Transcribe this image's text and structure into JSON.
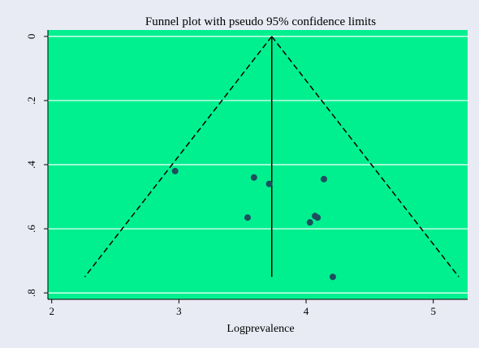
{
  "colors": {
    "outer_background": "#e8eaf4",
    "plot_background": "#00f08f",
    "gridline": "#ffffff",
    "marker": "#1e4f5f",
    "line": "#000000"
  },
  "chart_data": {
    "type": "scatter",
    "title": "Funnel plot with pseudo 95% confidence limits",
    "xlabel": "Logprevalence",
    "ylabel": "",
    "xlim": [
      1.97,
      5.27
    ],
    "ylim": [
      0.82,
      -0.02
    ],
    "y_reversed": true,
    "x_ticks": [
      2,
      3,
      4,
      5
    ],
    "x_tick_labels": [
      "2",
      "3",
      "4",
      "5"
    ],
    "y_ticks": [
      0,
      0.2,
      0.4,
      0.6,
      0.8
    ],
    "y_tick_labels": [
      "0",
      ".2",
      ".4",
      ".6",
      ".8"
    ],
    "grid": "horizontal",
    "legend": "none",
    "points": [
      {
        "x": 2.97,
        "y": 0.42
      },
      {
        "x": 3.59,
        "y": 0.44
      },
      {
        "x": 3.71,
        "y": 0.46
      },
      {
        "x": 4.14,
        "y": 0.445
      },
      {
        "x": 3.54,
        "y": 0.565
      },
      {
        "x": 4.07,
        "y": 0.56
      },
      {
        "x": 4.09,
        "y": 0.565
      },
      {
        "x": 4.03,
        "y": 0.58
      },
      {
        "x": 4.21,
        "y": 0.75
      }
    ],
    "pooled_estimate": 3.73,
    "funnel_max_se": 0.75,
    "ci_multiplier": 1.96
  }
}
